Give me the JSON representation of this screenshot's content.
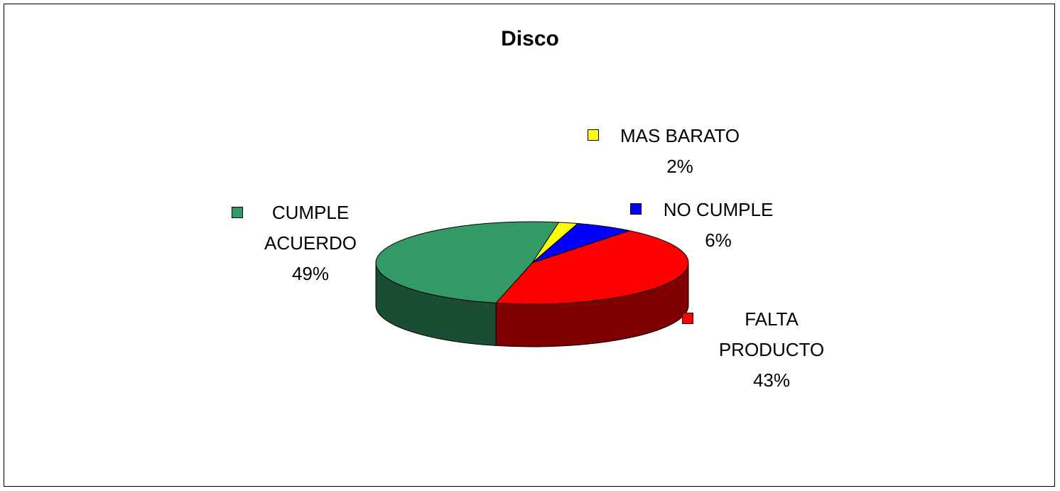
{
  "chart_data": {
    "type": "pie",
    "title": "Disco",
    "categories": [
      "MAS BARATO",
      "NO CUMPLE",
      "FALTA PRODUCTO",
      "CUMPLE ACUERDO"
    ],
    "values": [
      2,
      6,
      43,
      49
    ],
    "value_labels": [
      "2%",
      "6%",
      "43%",
      "49%"
    ],
    "colors": [
      "#ffff00",
      "#0000ff",
      "#ff0000",
      "#339966"
    ]
  }
}
